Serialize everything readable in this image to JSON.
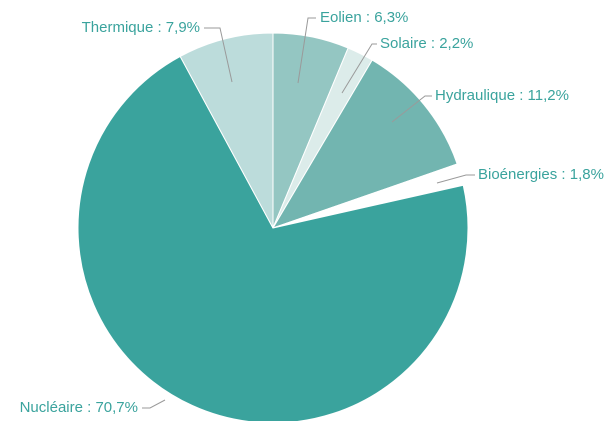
{
  "chart_data": {
    "type": "pie",
    "values": [
      6.3,
      2.2,
      11.2,
      1.8,
      70.7,
      7.9
    ],
    "value_labels": [
      "Eolien : 6,3%",
      "Solaire : 2,2%",
      "Hydraulique : 11,2%",
      "Bioénergies : 1,8%",
      "Nucléaire : 70,7%",
      "Thermique : 7,9%"
    ],
    "colors": [
      "#94c6c2",
      "#dcecea",
      "#72b5b0",
      "#ffffff",
      "#3aa39d",
      "#bcdcdb"
    ]
  }
}
